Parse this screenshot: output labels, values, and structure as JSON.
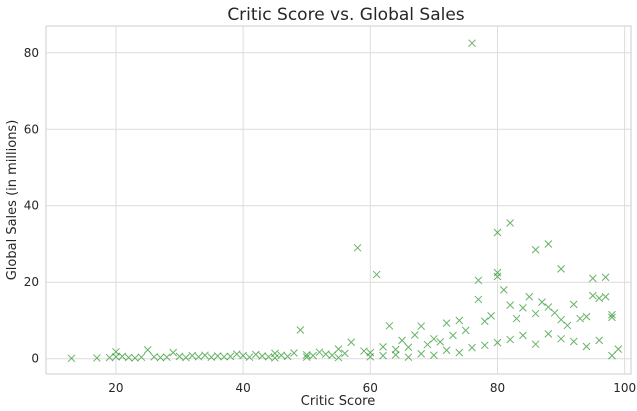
{
  "chart_data": {
    "type": "scatter",
    "title": "Critic Score vs. Global Sales",
    "xlabel": "Critic Score",
    "ylabel": "Global Sales (in millions)",
    "xlim": [
      9,
      101
    ],
    "ylim": [
      -4,
      87
    ],
    "xticks": [
      20,
      40,
      60,
      80,
      100
    ],
    "yticks": [
      0,
      20,
      40,
      60,
      80
    ],
    "grid": true,
    "marker": "x",
    "color": "#008000",
    "series": [
      {
        "points": [
          [
            13,
            0.1
          ],
          [
            17,
            0.2
          ],
          [
            19,
            0.3
          ],
          [
            20,
            0.5
          ],
          [
            20,
            1.8
          ],
          [
            21,
            0.6
          ],
          [
            22,
            0.3
          ],
          [
            23,
            0.2
          ],
          [
            24,
            0.4
          ],
          [
            25,
            2.3
          ],
          [
            26,
            0.5
          ],
          [
            27,
            0.3
          ],
          [
            28,
            0.4
          ],
          [
            29,
            1.6
          ],
          [
            30,
            0.6
          ],
          [
            31,
            0.3
          ],
          [
            32,
            0.8
          ],
          [
            33,
            0.5
          ],
          [
            34,
            0.9
          ],
          [
            35,
            0.4
          ],
          [
            36,
            0.7
          ],
          [
            37,
            0.5
          ],
          [
            38,
            0.6
          ],
          [
            39,
            1.2
          ],
          [
            40,
            0.8
          ],
          [
            41,
            0.4
          ],
          [
            42,
            1.1
          ],
          [
            43,
            0.7
          ],
          [
            44,
            0.5
          ],
          [
            45,
            1.4
          ],
          [
            46,
            0.9
          ],
          [
            47,
            0.6
          ],
          [
            48,
            1.5
          ],
          [
            49,
            7.5
          ],
          [
            50,
            1.0
          ],
          [
            51,
            0.8
          ],
          [
            52,
            1.7
          ],
          [
            53,
            1.2
          ],
          [
            54,
            0.9
          ],
          [
            55,
            2.5
          ],
          [
            56,
            1.4
          ],
          [
            57,
            4.3
          ],
          [
            58,
            29.0
          ],
          [
            59,
            2.0
          ],
          [
            60,
            1.6
          ],
          [
            61,
            22.0
          ],
          [
            62,
            3.1
          ],
          [
            63,
            8.6
          ],
          [
            64,
            2.4
          ],
          [
            65,
            4.8
          ],
          [
            66,
            3.0
          ],
          [
            67,
            6.2
          ],
          [
            68,
            8.5
          ],
          [
            69,
            3.7
          ],
          [
            70,
            5.2
          ],
          [
            71,
            4.4
          ],
          [
            72,
            9.3
          ],
          [
            73,
            6.1
          ],
          [
            74,
            10.0
          ],
          [
            75,
            7.4
          ],
          [
            76,
            82.5
          ],
          [
            77,
            20.5
          ],
          [
            77,
            15.5
          ],
          [
            78,
            9.8
          ],
          [
            79,
            11.2
          ],
          [
            80,
            33.0
          ],
          [
            80,
            22.5
          ],
          [
            80,
            21.5
          ],
          [
            81,
            18.0
          ],
          [
            82,
            35.5
          ],
          [
            82,
            14.0
          ],
          [
            83,
            10.5
          ],
          [
            84,
            13.3
          ],
          [
            85,
            16.2
          ],
          [
            86,
            28.5
          ],
          [
            86,
            11.8
          ],
          [
            87,
            14.8
          ],
          [
            88,
            30.0
          ],
          [
            88,
            13.5
          ],
          [
            89,
            12.0
          ],
          [
            90,
            23.5
          ],
          [
            90,
            10.2
          ],
          [
            91,
            8.7
          ],
          [
            92,
            14.2
          ],
          [
            93,
            10.5
          ],
          [
            94,
            11.0
          ],
          [
            95,
            21.0
          ],
          [
            95,
            16.5
          ],
          [
            96,
            15.8
          ],
          [
            97,
            21.3
          ],
          [
            97,
            16.2
          ],
          [
            98,
            11.5
          ],
          [
            98,
            10.8
          ],
          [
            99,
            2.5
          ],
          [
            45,
            0.2
          ],
          [
            50,
            0.4
          ],
          [
            55,
            0.3
          ],
          [
            60,
            0.5
          ],
          [
            62,
            0.8
          ],
          [
            64,
            1.0
          ],
          [
            66,
            0.4
          ],
          [
            68,
            1.3
          ],
          [
            70,
            0.9
          ],
          [
            72,
            2.2
          ],
          [
            74,
            1.6
          ],
          [
            76,
            2.9
          ],
          [
            78,
            3.5
          ],
          [
            80,
            4.2
          ],
          [
            82,
            5.0
          ],
          [
            84,
            6.1
          ],
          [
            86,
            3.8
          ],
          [
            88,
            6.5
          ],
          [
            90,
            5.2
          ],
          [
            92,
            4.5
          ],
          [
            94,
            3.2
          ],
          [
            96,
            4.8
          ],
          [
            98,
            0.8
          ]
        ]
      }
    ]
  }
}
